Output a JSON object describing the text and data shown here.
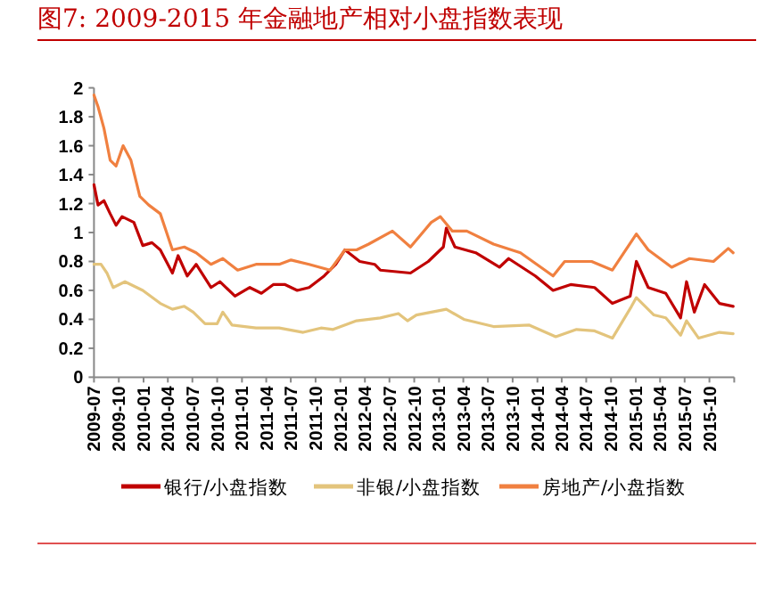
{
  "chart_data": {
    "type": "line",
    "title": "图7:   2009-2015 年金融地产相对小盘指数表现",
    "xlim": [
      "2009-07-01",
      "2016-01-01"
    ],
    "xticks": [
      "2009-07",
      "2009-10",
      "2010-01",
      "2010-04",
      "2010-07",
      "2010-10",
      "2011-01",
      "2011-04",
      "2011-07",
      "2011-10",
      "2012-01",
      "2012-04",
      "2012-07",
      "2012-10",
      "2013-01",
      "2013-04",
      "2013-07",
      "2013-10",
      "2014-01",
      "2014-04",
      "2014-07",
      "2014-10",
      "2015-01",
      "2015-04",
      "2015-07",
      "2015-10"
    ],
    "ylim": [
      0,
      2
    ],
    "yticks": [
      0,
      0.2,
      0.4,
      0.6,
      0.8,
      1,
      1.2,
      1.4,
      1.6,
      1.8,
      2
    ],
    "legend": "bottom",
    "grid": false,
    "marker": "none",
    "line_style": "solid",
    "series": [
      {
        "name": "银行/小盘指数",
        "color": "#c00000",
        "x": [
          "2009-07-01",
          "2009-07-16",
          "2009-08-07",
          "2009-08-30",
          "2009-09-21",
          "2009-10-13",
          "2009-11-26",
          "2009-12-29",
          "2010-02-01",
          "2010-03-04",
          "2010-04-18",
          "2010-05-09",
          "2010-06-12",
          "2010-07-15",
          "2010-09-08",
          "2010-10-11",
          "2010-12-06",
          "2011-01-30",
          "2011-03-14",
          "2011-04-27",
          "2011-06-10",
          "2011-07-25",
          "2011-09-07",
          "2011-11-02",
          "2011-12-15",
          "2012-01-18",
          "2012-03-13",
          "2012-05-07",
          "2012-05-28",
          "2012-09-17",
          "2012-11-22",
          "2013-01-17",
          "2013-01-28",
          "2013-03-01",
          "2013-05-17",
          "2013-08-13",
          "2013-09-16",
          "2013-12-24",
          "2014-02-28",
          "2014-05-04",
          "2014-08-01",
          "2014-10-06",
          "2014-12-11",
          "2015-01-03",
          "2015-02-16",
          "2015-04-22",
          "2015-06-16",
          "2015-07-08",
          "2015-08-06",
          "2015-09-13",
          "2015-11-07",
          "2015-12-28"
        ],
        "values": [
          1.33,
          1.19,
          1.22,
          1.13,
          1.05,
          1.11,
          1.07,
          0.91,
          0.93,
          0.88,
          0.72,
          0.84,
          0.7,
          0.78,
          0.62,
          0.66,
          0.56,
          0.62,
          0.58,
          0.64,
          0.64,
          0.6,
          0.62,
          0.7,
          0.78,
          0.88,
          0.8,
          0.78,
          0.74,
          0.72,
          0.8,
          0.9,
          1.03,
          0.9,
          0.86,
          0.76,
          0.82,
          0.7,
          0.6,
          0.64,
          0.62,
          0.51,
          0.56,
          0.8,
          0.62,
          0.58,
          0.41,
          0.66,
          0.45,
          0.64,
          0.51,
          0.49
        ]
      },
      {
        "name": "非银/小盘指数",
        "color": "#e3c47c",
        "x": [
          "2009-07-01",
          "2009-07-27",
          "2009-08-18",
          "2009-09-10",
          "2009-10-24",
          "2009-12-29",
          "2010-03-04",
          "2010-04-18",
          "2010-06-01",
          "2010-07-04",
          "2010-08-17",
          "2010-10-01",
          "2010-10-22",
          "2010-11-25",
          "2011-02-22",
          "2011-05-19",
          "2011-08-16",
          "2011-10-21",
          "2011-12-05",
          "2012-03-01",
          "2012-05-28",
          "2012-08-03",
          "2012-09-06",
          "2012-10-09",
          "2013-01-28",
          "2013-04-03",
          "2013-07-22",
          "2013-12-02",
          "2014-03-10",
          "2014-05-26",
          "2014-08-01",
          "2014-10-06",
          "2014-12-16",
          "2015-01-03",
          "2015-03-09",
          "2015-04-22",
          "2015-06-16",
          "2015-07-08",
          "2015-08-22",
          "2015-11-07",
          "2015-12-28"
        ],
        "values": [
          0.78,
          0.78,
          0.72,
          0.62,
          0.66,
          0.6,
          0.51,
          0.47,
          0.49,
          0.45,
          0.37,
          0.37,
          0.45,
          0.36,
          0.34,
          0.34,
          0.31,
          0.34,
          0.33,
          0.39,
          0.41,
          0.44,
          0.39,
          0.43,
          0.47,
          0.4,
          0.35,
          0.36,
          0.28,
          0.33,
          0.32,
          0.27,
          0.49,
          0.55,
          0.43,
          0.41,
          0.29,
          0.39,
          0.27,
          0.31,
          0.3
        ]
      },
      {
        "name": "房地产/小盘指数",
        "color": "#f08040",
        "x": [
          "2009-07-01",
          "2009-07-16",
          "2009-08-07",
          "2009-08-30",
          "2009-09-21",
          "2009-10-17",
          "2009-11-15",
          "2009-12-18",
          "2010-01-20",
          "2010-03-04",
          "2010-04-18",
          "2010-06-01",
          "2010-07-15",
          "2010-09-08",
          "2010-10-22",
          "2010-12-16",
          "2011-02-22",
          "2011-05-19",
          "2011-07-02",
          "2011-09-07",
          "2011-11-24",
          "2012-01-18",
          "2012-03-01",
          "2012-04-15",
          "2012-07-12",
          "2012-09-17",
          "2012-12-03",
          "2013-01-06",
          "2013-02-19",
          "2013-04-14",
          "2013-07-22",
          "2013-10-30",
          "2014-02-28",
          "2014-04-12",
          "2014-07-21",
          "2014-10-06",
          "2015-01-03",
          "2015-02-16",
          "2015-05-14",
          "2015-07-19",
          "2015-10-16",
          "2015-12-10",
          "2015-12-28"
        ],
        "values": [
          1.95,
          1.87,
          1.72,
          1.5,
          1.46,
          1.6,
          1.5,
          1.25,
          1.19,
          1.13,
          0.88,
          0.9,
          0.86,
          0.78,
          0.82,
          0.74,
          0.78,
          0.78,
          0.81,
          0.78,
          0.74,
          0.88,
          0.88,
          0.92,
          1.01,
          0.9,
          1.07,
          1.11,
          1.01,
          1.01,
          0.92,
          0.86,
          0.7,
          0.8,
          0.8,
          0.74,
          0.99,
          0.88,
          0.76,
          0.82,
          0.8,
          0.89,
          0.86
        ]
      }
    ]
  }
}
